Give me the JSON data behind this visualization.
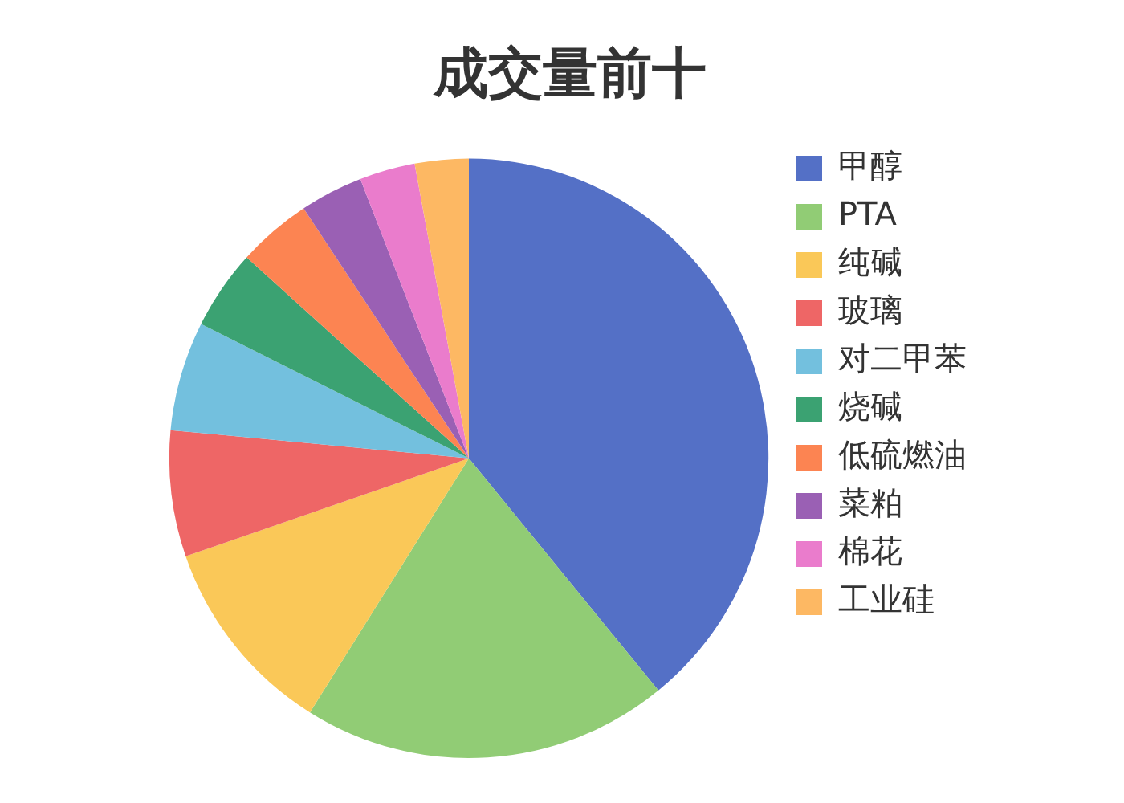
{
  "chart_data": {
    "type": "pie",
    "title": "成交量前十",
    "categories": [
      "甲醇",
      "PTA",
      "纯碱",
      "玻璃",
      "对二甲苯",
      "烧碱",
      "低硫燃油",
      "菜粕",
      "棉花",
      "工业硅"
    ],
    "values": [
      39.1,
      19.8,
      10.8,
      6.8,
      5.9,
      4.3,
      4.0,
      3.4,
      3.0,
      2.9
    ],
    "colors": [
      "#5470c6",
      "#91cc75",
      "#fac858",
      "#ee6666",
      "#73c0de",
      "#3ba272",
      "#fc8452",
      "#9a60b4",
      "#ea7ccc",
      "#fdb863"
    ],
    "legend": "right"
  }
}
